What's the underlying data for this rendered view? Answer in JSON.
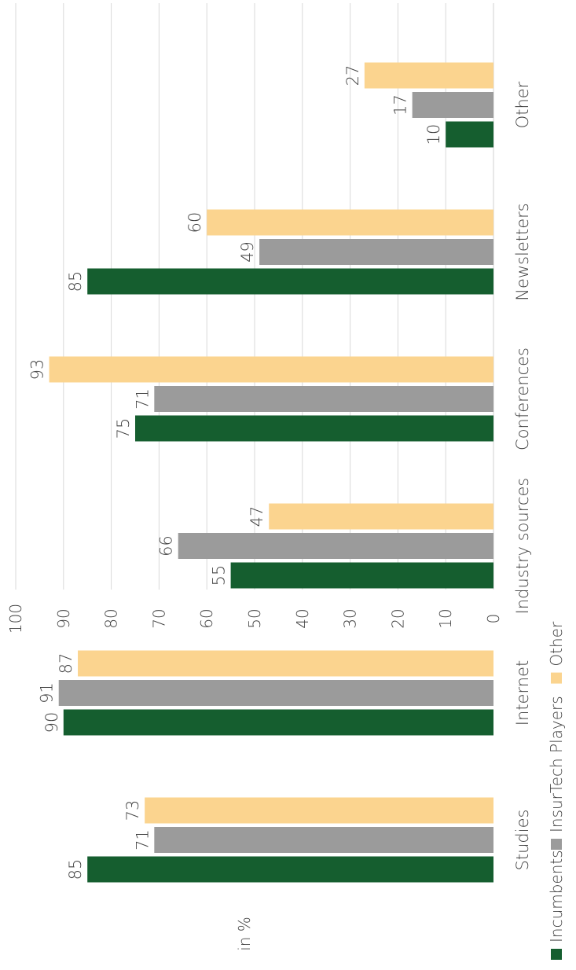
{
  "chart_data": {
    "type": "bar",
    "orientation": "horizontal, rotated 90 degrees counter-clockwise",
    "categories": [
      "Studies",
      "Internet",
      "Industry sources",
      "Conferences",
      "Newsletters",
      "Other"
    ],
    "series": [
      {
        "name": "Incumbents",
        "color": "#155e2f",
        "values": [
          85,
          90,
          55,
          75,
          85,
          10
        ]
      },
      {
        "name": "InsurTech Players",
        "color": "#9b9b9b",
        "values": [
          71,
          91,
          66,
          71,
          49,
          17
        ]
      },
      {
        "name": "Other",
        "color": "#fbd48f",
        "values": [
          73,
          87,
          47,
          93,
          60,
          27
        ]
      }
    ],
    "value_axis": {
      "label": "in %",
      "min": 0,
      "max": 100,
      "ticks": [
        "0",
        "10",
        "20",
        "30",
        "40",
        "50",
        "60",
        "70",
        "80",
        "90",
        "100"
      ]
    },
    "grid": true,
    "legend_position": "bottom",
    "data_labels": true
  }
}
